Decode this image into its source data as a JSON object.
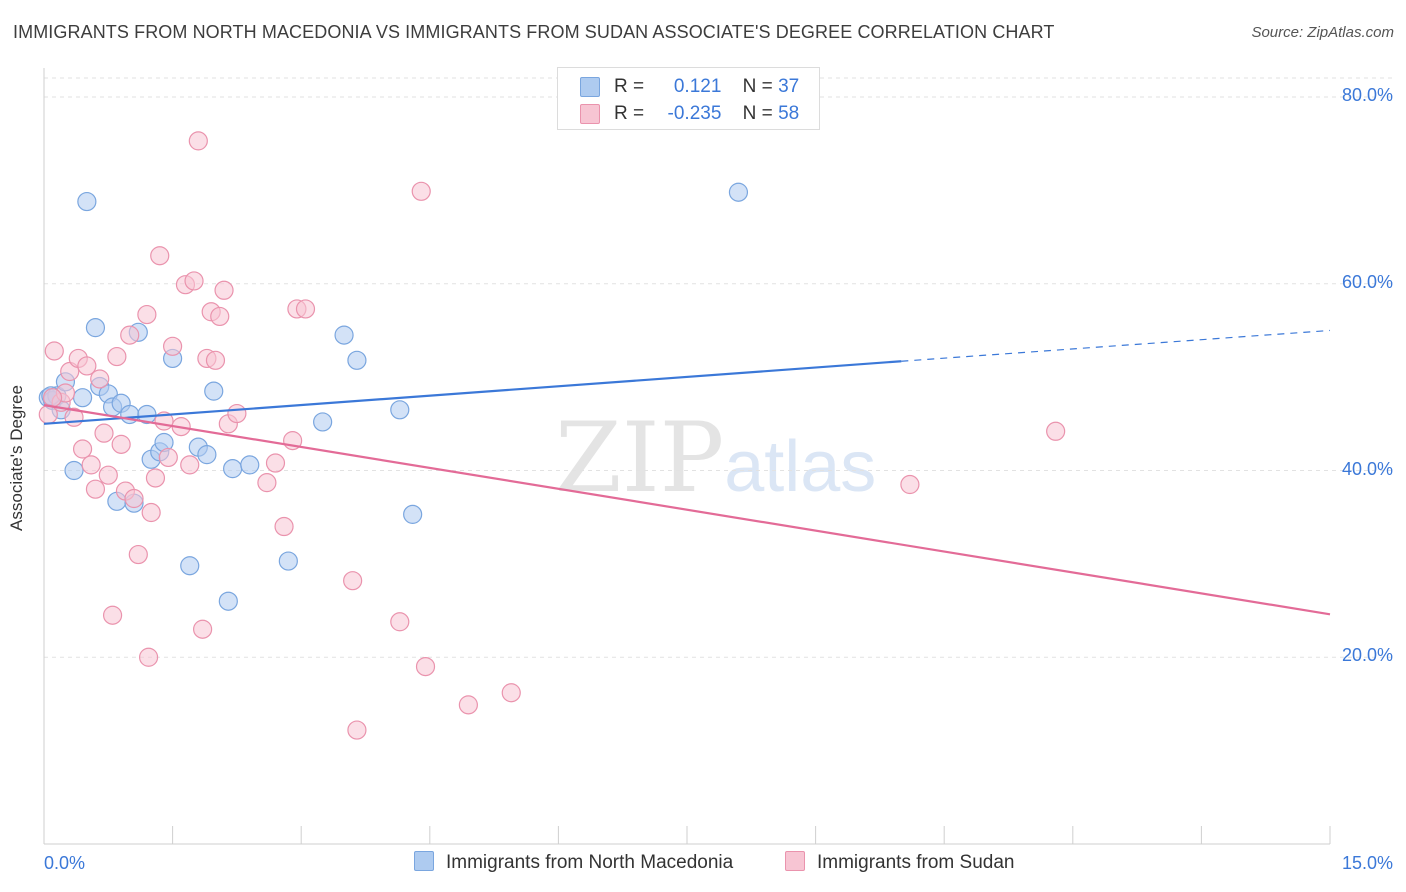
{
  "title": "IMMIGRANTS FROM NORTH MACEDONIA VS IMMIGRANTS FROM SUDAN ASSOCIATE'S DEGREE CORRELATION CHART",
  "source": "Source: ZipAtlas.com",
  "watermark": {
    "zip": "ZIP",
    "atlas": "atlas"
  },
  "legend": {
    "rows": [
      {
        "r_label": "R =",
        "r_value": "0.121",
        "n_label": "N =",
        "n_value": "37",
        "color": "#aecbf0",
        "border": "#7aa6df"
      },
      {
        "r_label": "R =",
        "r_value": "-0.235",
        "n_label": "N =",
        "n_value": "58",
        "color": "#f7c5d3",
        "border": "#ea93ad"
      }
    ]
  },
  "chart_data": {
    "type": "scatter",
    "title": "IMMIGRANTS FROM NORTH MACEDONIA VS IMMIGRANTS FROM SUDAN ASSOCIATE'S DEGREE CORRELATION CHART",
    "xlabel": "",
    "ylabel": "Associate's Degree",
    "xlim": [
      0,
      15
    ],
    "ylim": [
      0,
      80
    ],
    "x_tick_labels": [
      "0.0%",
      "15.0%"
    ],
    "y_ticks": [
      20,
      40,
      60,
      80
    ],
    "y_tick_labels": [
      "20.0%",
      "40.0%",
      "60.0%",
      "80.0%"
    ],
    "grid": true,
    "legend_position": "top-center",
    "series": [
      {
        "name": "Immigrants from North Macedonia",
        "color": "#3b78d8",
        "fill": "#aecbf0",
        "r": 0.121,
        "n": 37,
        "trend": {
          "x0": 0,
          "y0": 45.0,
          "x1": 10.0,
          "y1": 51.7,
          "dashed_to_x": 15,
          "dashed_to_y": 55.0
        },
        "points": [
          [
            0.05,
            47.8
          ],
          [
            0.1,
            47.5
          ],
          [
            0.15,
            48.0
          ],
          [
            0.2,
            46.5
          ],
          [
            0.25,
            49.5
          ],
          [
            0.35,
            40.0
          ],
          [
            0.5,
            68.8
          ],
          [
            0.45,
            47.8
          ],
          [
            0.6,
            55.3
          ],
          [
            0.65,
            49.0
          ],
          [
            0.75,
            48.2
          ],
          [
            0.8,
            46.8
          ],
          [
            0.9,
            47.2
          ],
          [
            0.85,
            36.7
          ],
          [
            1.0,
            46.0
          ],
          [
            1.05,
            36.5
          ],
          [
            1.1,
            54.8
          ],
          [
            1.2,
            46.0
          ],
          [
            1.25,
            41.2
          ],
          [
            1.35,
            42.0
          ],
          [
            1.4,
            43.0
          ],
          [
            1.5,
            52.0
          ],
          [
            1.7,
            29.8
          ],
          [
            1.8,
            42.5
          ],
          [
            1.9,
            41.7
          ],
          [
            1.98,
            48.5
          ],
          [
            2.15,
            26.0
          ],
          [
            2.2,
            40.2
          ],
          [
            2.4,
            40.6
          ],
          [
            2.85,
            30.3
          ],
          [
            3.25,
            45.2
          ],
          [
            3.5,
            54.5
          ],
          [
            3.65,
            51.8
          ],
          [
            4.15,
            46.5
          ],
          [
            4.3,
            35.3
          ],
          [
            8.1,
            69.8
          ],
          [
            0.08,
            48.0
          ]
        ]
      },
      {
        "name": "Immigrants from Sudan",
        "color": "#e36b97",
        "fill": "#f7c5d3",
        "r": -0.235,
        "n": 58,
        "trend": {
          "x0": 0,
          "y0": 47.0,
          "x1": 15,
          "y1": 24.6
        },
        "points": [
          [
            0.05,
            46.0
          ],
          [
            0.12,
            52.8
          ],
          [
            0.2,
            47.3
          ],
          [
            0.25,
            48.3
          ],
          [
            0.3,
            50.6
          ],
          [
            0.35,
            45.7
          ],
          [
            0.4,
            52.0
          ],
          [
            0.45,
            42.3
          ],
          [
            0.5,
            51.2
          ],
          [
            0.55,
            40.6
          ],
          [
            0.6,
            38.0
          ],
          [
            0.65,
            49.8
          ],
          [
            0.7,
            44.0
          ],
          [
            0.75,
            39.5
          ],
          [
            0.8,
            24.5
          ],
          [
            0.85,
            52.2
          ],
          [
            0.9,
            42.8
          ],
          [
            0.95,
            37.8
          ],
          [
            1.0,
            54.5
          ],
          [
            1.05,
            37.0
          ],
          [
            1.1,
            31.0
          ],
          [
            1.2,
            56.7
          ],
          [
            1.22,
            20.0
          ],
          [
            1.25,
            35.5
          ],
          [
            1.3,
            39.2
          ],
          [
            1.35,
            63.0
          ],
          [
            1.4,
            45.3
          ],
          [
            1.45,
            41.4
          ],
          [
            1.5,
            53.3
          ],
          [
            1.6,
            44.7
          ],
          [
            1.65,
            59.9
          ],
          [
            1.7,
            40.6
          ],
          [
            1.75,
            60.3
          ],
          [
            1.8,
            75.3
          ],
          [
            1.85,
            23.0
          ],
          [
            1.9,
            52.0
          ],
          [
            1.95,
            57.0
          ],
          [
            2.0,
            51.8
          ],
          [
            2.05,
            56.5
          ],
          [
            2.1,
            59.3
          ],
          [
            2.15,
            45.0
          ],
          [
            2.25,
            46.1
          ],
          [
            2.6,
            38.7
          ],
          [
            2.7,
            40.8
          ],
          [
            2.8,
            34.0
          ],
          [
            2.9,
            43.2
          ],
          [
            2.95,
            57.3
          ],
          [
            3.05,
            57.3
          ],
          [
            3.6,
            28.2
          ],
          [
            3.65,
            12.2
          ],
          [
            4.15,
            23.8
          ],
          [
            4.4,
            69.9
          ],
          [
            4.45,
            19.0
          ],
          [
            4.95,
            14.9
          ],
          [
            5.45,
            16.2
          ],
          [
            10.1,
            38.5
          ],
          [
            11.8,
            44.2
          ],
          [
            0.1,
            47.8
          ]
        ]
      }
    ]
  }
}
